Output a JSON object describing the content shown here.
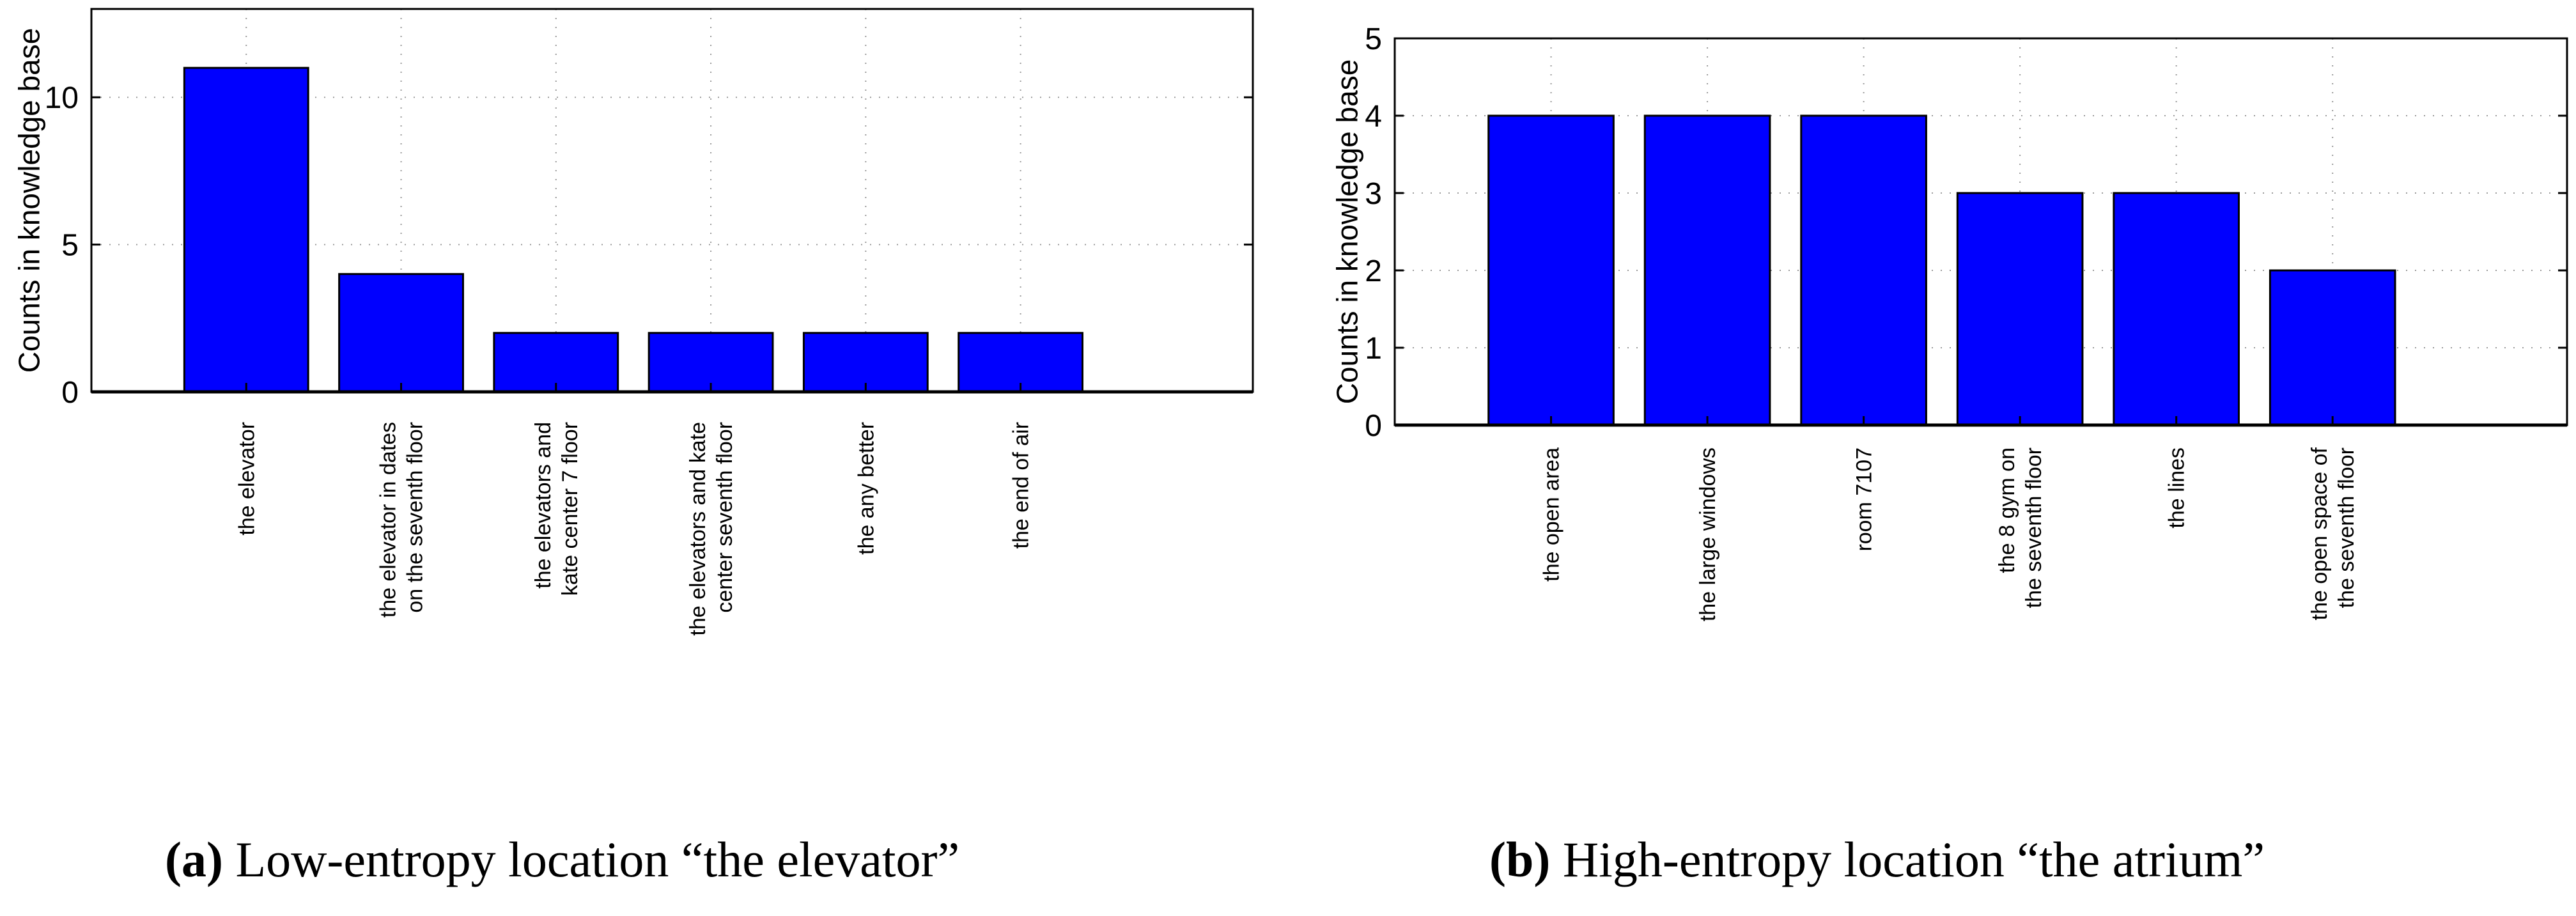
{
  "chart_data": [
    {
      "type": "bar",
      "panel": "a",
      "ylabel": "Counts in knowledge base",
      "xlabel": "",
      "ylim": [
        0,
        13
      ],
      "yticks": [
        0,
        5,
        10
      ],
      "grid": true,
      "bar_color": "#0000ff",
      "categories": [
        [
          "the elevator"
        ],
        [
          "the elevator in dates",
          "on the seventh floor"
        ],
        [
          "the elevators and",
          "kate center 7 floor"
        ],
        [
          "the elevators and kate",
          "center seventh floor"
        ],
        [
          "the any better"
        ],
        [
          "the end of air"
        ]
      ],
      "values": [
        11,
        4,
        2,
        2,
        2,
        2
      ]
    },
    {
      "type": "bar",
      "panel": "b",
      "ylabel": "Counts in knowledge base",
      "xlabel": "",
      "ylim": [
        0,
        5
      ],
      "yticks": [
        0,
        1,
        2,
        3,
        4,
        5
      ],
      "grid": true,
      "bar_color": "#0000ff",
      "categories": [
        [
          "the open area"
        ],
        [
          "the large windows"
        ],
        [
          "room 7107"
        ],
        [
          "the 8 gym on",
          "the seventh floor"
        ],
        [
          "the lines"
        ],
        [
          "the open space of",
          "the seventh floor"
        ]
      ],
      "values": [
        4,
        4,
        4,
        3,
        3,
        2
      ]
    }
  ],
  "captions": {
    "a": {
      "letter": "(a)",
      "text": " Low-entropy location “the elevator”"
    },
    "b": {
      "letter": "(b)",
      "text": " High-entropy location “the atrium”"
    }
  }
}
